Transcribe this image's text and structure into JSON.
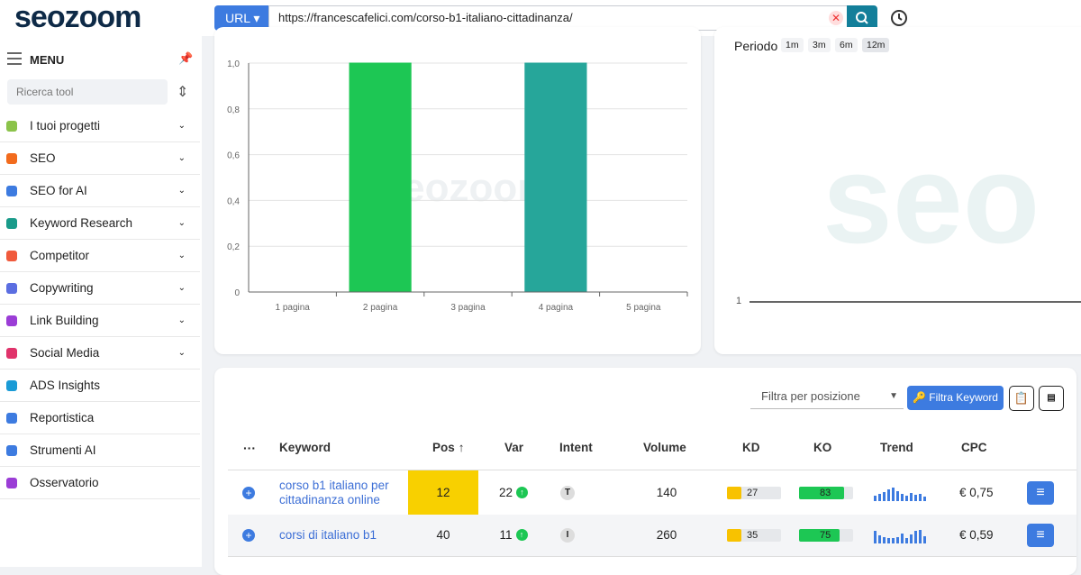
{
  "header": {
    "logo": "seozoom",
    "url_mode": "URL",
    "url": "https://francescafelici.com/corso-b1-italiano-cittadinanza/"
  },
  "sidebar": {
    "menu_label": "MENU",
    "search_placeholder": "Ricerca tool",
    "items": [
      "I tuoi progetti",
      "SEO",
      "SEO for AI",
      "Keyword Research",
      "Competitor",
      "Copywriting",
      "Link Building",
      "Social Media",
      "ADS Insights",
      "Reportistica",
      "Strumenti AI",
      "Osservatorio"
    ]
  },
  "chart_data": {
    "type": "bar",
    "watermark": "seozoom",
    "categories": [
      "1 pagina",
      "2 pagina",
      "3 pagina",
      "4 pagina",
      "5 pagina"
    ],
    "values": [
      0,
      1,
      0,
      1,
      0
    ],
    "colors": [
      "#1dc754",
      "#1dc754",
      "#26a69a",
      "#26a69a",
      "#1dc754"
    ],
    "ylim": [
      0,
      1
    ],
    "yticks": [
      0,
      {
        "value": 0.2,
        "label": "0,2"
      },
      {
        "value": 0.4,
        "label": "0,4"
      },
      {
        "value": 0.6,
        "label": "0,6"
      },
      {
        "value": 0.8,
        "label": "0,8"
      },
      {
        "value": 1,
        "label": "1,0"
      }
    ],
    "grid": true
  },
  "right_panel": {
    "period_label": "Periodo",
    "periods": [
      "1m",
      "3m",
      "6m",
      "12m"
    ],
    "active_period": "12m",
    "ytick": "1",
    "watermark": "seo"
  },
  "table": {
    "filter_placeholder": "Filtra per posizione",
    "filter_button": "Filtra Keyword",
    "columns": [
      "Keyword",
      "Pos",
      "Var",
      "Intent",
      "Volume",
      "KD",
      "KO",
      "Trend",
      "CPC"
    ],
    "rows": [
      {
        "keyword": "corso b1 italiano per cittadinanza online",
        "pos": 12,
        "var": 22,
        "intent": "T",
        "volume": 140,
        "kd": 27,
        "ko": 83,
        "trend": [
          6,
          8,
          10,
          13,
          15,
          11,
          8,
          6,
          9,
          7,
          8,
          5
        ],
        "cpc": "€ 0,75"
      },
      {
        "keyword": "corsi di italiano b1",
        "pos": 40,
        "var": 11,
        "intent": "I",
        "volume": 260,
        "kd": 35,
        "ko": 75,
        "trend": [
          14,
          9,
          7,
          6,
          6,
          7,
          11,
          6,
          10,
          14,
          15,
          8
        ],
        "cpc": "€ 0,59"
      }
    ]
  }
}
